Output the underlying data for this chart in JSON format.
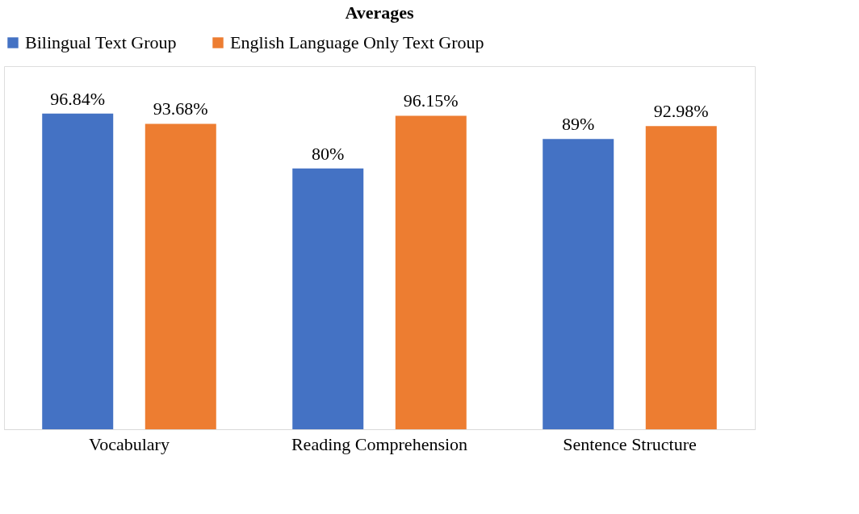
{
  "chart_data": {
    "type": "bar",
    "title": "Averages",
    "categories": [
      "Vocabulary",
      "Reading Comprehension",
      "Sentence Structure"
    ],
    "series": [
      {
        "name": "Bilingual Text Group",
        "color": "#4472c4",
        "values": [
          96.84,
          80,
          89
        ],
        "value_labels": [
          "96.84%",
          "80%",
          "89%"
        ]
      },
      {
        "name": "English Language Only Text Group",
        "color": "#ed7d31",
        "values": [
          93.68,
          96.15,
          92.98
        ],
        "value_labels": [
          "93.68%",
          "96.15%",
          "92.98%"
        ]
      }
    ],
    "legend": "top",
    "grid": false
  }
}
